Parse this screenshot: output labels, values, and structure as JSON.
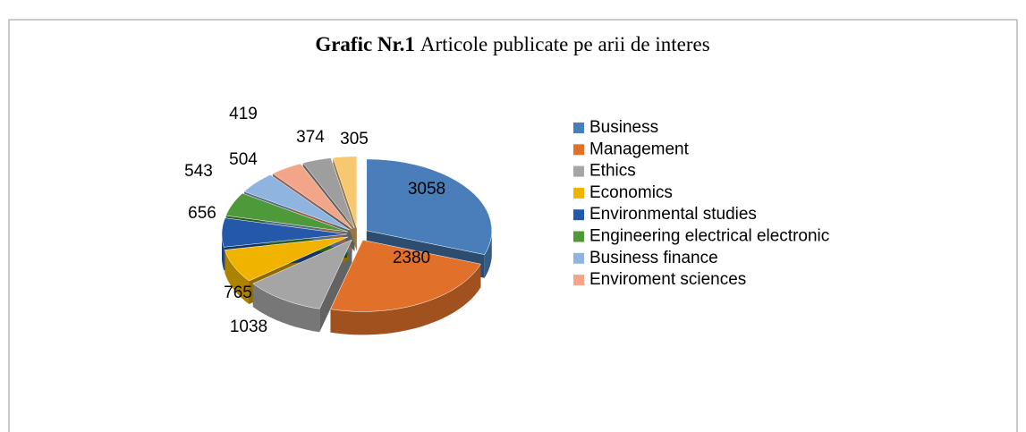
{
  "chart_data": {
    "type": "pie",
    "title": {
      "label": "Grafic Nr.1",
      "text": "Articole publicate pe arii de interes"
    },
    "categories": [
      "Business",
      "Management",
      "Ethics",
      "Economics",
      "Environmental studies",
      "Engineering electrical electronic",
      "Business finance",
      "Enviroment sciences",
      null,
      null
    ],
    "values": [
      3058,
      2380,
      1038,
      765,
      656,
      543,
      504,
      419,
      374,
      305
    ],
    "colors": [
      "#4a7ebb",
      "#e0702a",
      "#a5a5a5",
      "#f0b400",
      "#2458a8",
      "#4e9a3a",
      "#8fb4e0",
      "#f3a58a",
      "#9e9e9e",
      "#f8c870"
    ],
    "legend": "right"
  }
}
